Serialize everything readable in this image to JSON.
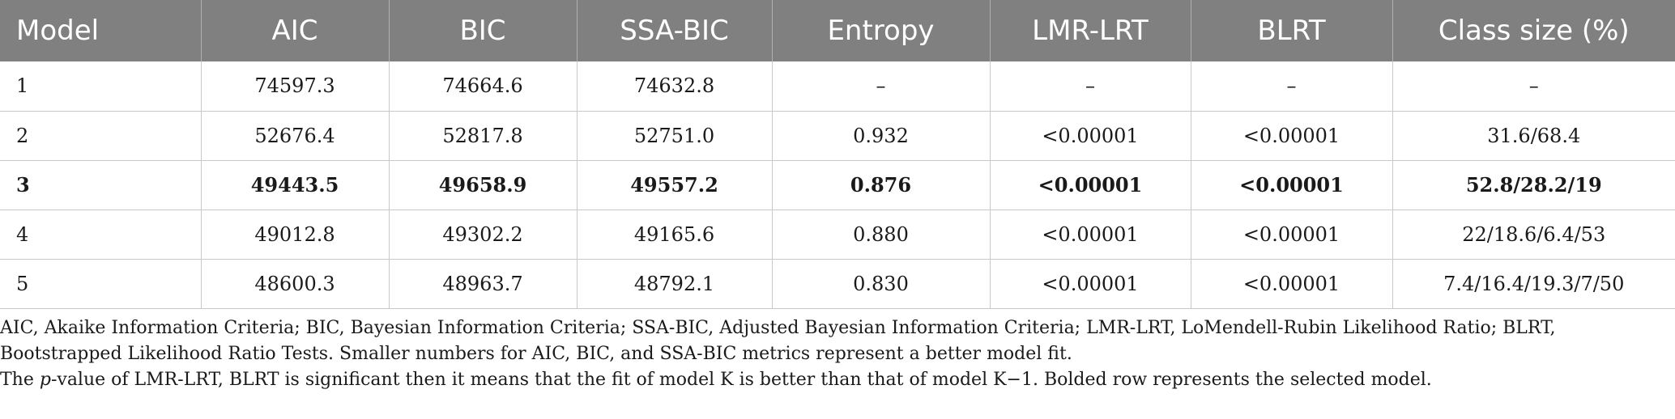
{
  "table": {
    "headers": [
      "Model",
      "AIC",
      "BIC",
      "SSA-BIC",
      "Entropy",
      "LMR-LRT",
      "BLRT",
      "Class size (%)"
    ],
    "rows": [
      [
        "1",
        "74597.3",
        "74664.6",
        "74632.8",
        "–",
        "–",
        "–",
        "–"
      ],
      [
        "2",
        "52676.4",
        "52817.8",
        "52751.0",
        "0.932",
        "<0.00001",
        "<0.00001",
        "31.6/68.4"
      ],
      [
        "3",
        "49443.5",
        "49658.9",
        "49557.2",
        "0.876",
        "<0.00001",
        "<0.00001",
        "52.8/28.2/19"
      ],
      [
        "4",
        "49012.8",
        "49302.2",
        "49165.6",
        "0.880",
        "<0.00001",
        "<0.00001",
        "22/18.6/6.4/53"
      ],
      [
        "5",
        "48600.3",
        "48963.7",
        "48792.1",
        "0.830",
        "<0.00001",
        "<0.00001",
        "7.4/16.4/19.3/7/50"
      ]
    ],
    "selected_row": "3"
  },
  "notes": {
    "line1": "AIC, Akaike Information Criteria; BIC, Bayesian Information Criteria; SSA-BIC, Adjusted Bayesian Information Criteria; LMR-LRT, LoMendell-Rubin Likelihood Ratio; BLRT, Bootstrapped Likelihood Ratio Tests. Smaller numbers for AIC, BIC, and SSA-BIC metrics represent a better model fit.",
    "line2_prefix": "The ",
    "line2_italic": "p",
    "line2_rest": "-value of LMR-LRT, BLRT is significant then it means that the fit of model K is better than that of model K−1. Bolded row represents the selected model."
  },
  "colors": {
    "header_bg": "#808080",
    "header_text": "#ffffff",
    "grid": "#c8c8c8"
  }
}
